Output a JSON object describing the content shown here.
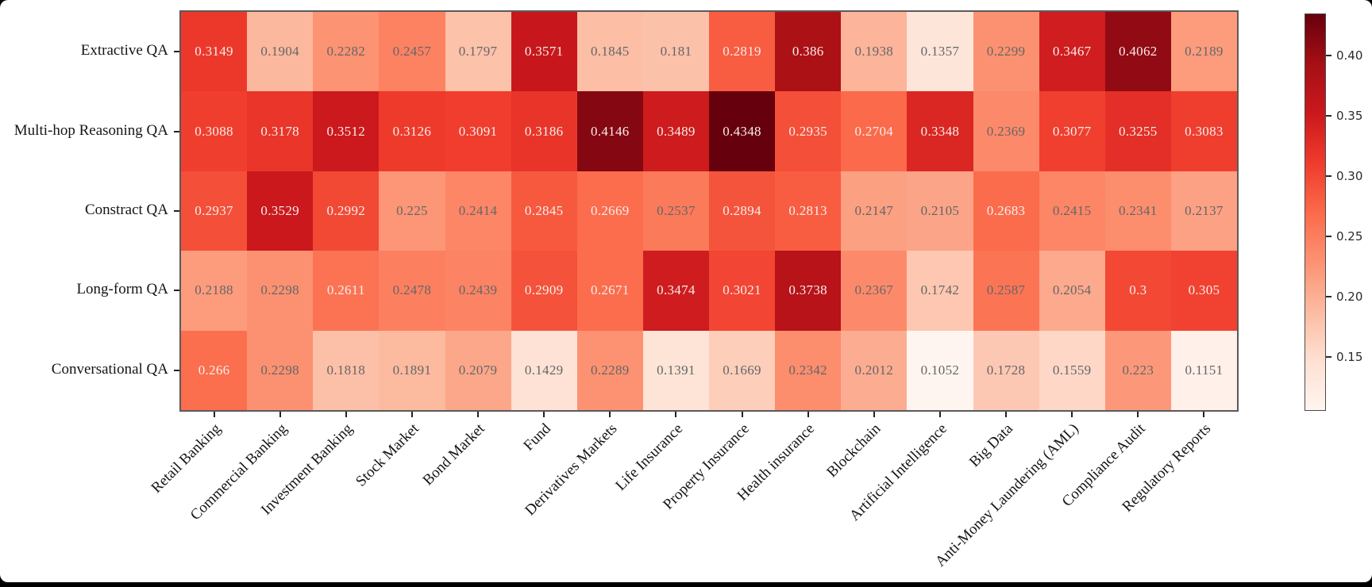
{
  "figure": {
    "background": "#ffffff",
    "frame_color": "#000000",
    "axis_color": "#5a5a5a",
    "tick_color": "#222222"
  },
  "chart_data": {
    "type": "heatmap",
    "rows": [
      "Extractive QA",
      "Multi-hop Reasoning QA",
      "Constract QA",
      "Long-form QA",
      "Conversational QA"
    ],
    "columns": [
      "Retail Banking",
      "Commercial Banking",
      "Investment Banking",
      "Stock Market",
      "Bond Market",
      "Fund",
      "Derivatives Markets",
      "Life Insurance",
      "Property Insurance",
      "Health insurance",
      "Blockchain",
      "Artificial Intelligence",
      "Big Data",
      "Anti-Money Laundering (AML)",
      "Compliance Audit",
      "Regulatory Reports"
    ],
    "values": [
      [
        0.3149,
        0.1904,
        0.2282,
        0.2457,
        0.1797,
        0.3571,
        0.1845,
        0.181,
        0.2819,
        0.386,
        0.1938,
        0.1357,
        0.2299,
        0.3467,
        0.4062,
        0.2189
      ],
      [
        0.3088,
        0.3178,
        0.3512,
        0.3126,
        0.3091,
        0.3186,
        0.4146,
        0.3489,
        0.4348,
        0.2935,
        0.2704,
        0.3348,
        0.2369,
        0.3077,
        0.3255,
        0.3083
      ],
      [
        0.2937,
        0.3529,
        0.2992,
        0.225,
        0.2414,
        0.2845,
        0.2669,
        0.2537,
        0.2894,
        0.2813,
        0.2147,
        0.2105,
        0.2683,
        0.2415,
        0.2341,
        0.2137
      ],
      [
        0.2188,
        0.2298,
        0.2611,
        0.2478,
        0.2439,
        0.2909,
        0.2671,
        0.3474,
        0.3021,
        0.3738,
        0.2367,
        0.1742,
        0.2587,
        0.2054,
        0.3,
        0.305
      ],
      [
        0.266,
        0.2298,
        0.1818,
        0.1891,
        0.2079,
        0.1429,
        0.2289,
        0.1391,
        0.1669,
        0.2342,
        0.2012,
        0.1052,
        0.1728,
        0.1559,
        0.223,
        0.1151
      ]
    ],
    "vmin": 0.1052,
    "vmax": 0.4348,
    "colormap_name": "Reds",
    "colormap": [
      "#fff5f0",
      "#fee0d2",
      "#fcbba1",
      "#fc9272",
      "#fb6a4a",
      "#ef3b2c",
      "#cb181d",
      "#a50f15",
      "#67000d"
    ],
    "colorbar": {
      "position": "right",
      "tick_labels": [
        "0.40",
        "0.35",
        "0.30",
        "0.25",
        "0.20",
        "0.15"
      ],
      "tick_values": [
        0.4,
        0.35,
        0.3,
        0.25,
        0.2,
        0.15
      ]
    },
    "annotation_colors": {
      "on_dark": "#f6eeeb",
      "on_light": "#646668"
    },
    "annotation_light_threshold": 0.26,
    "grid": false
  }
}
